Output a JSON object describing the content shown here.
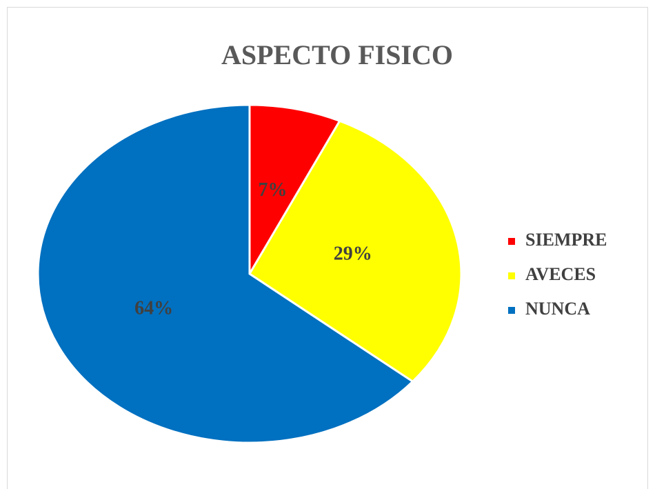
{
  "chart_data": {
    "type": "pie",
    "title": "ASPECTO FISICO",
    "categories": [
      "SIEMPRE",
      "AVECES",
      "NUNCA"
    ],
    "values": [
      7,
      29,
      64
    ],
    "value_labels": [
      "7%",
      "29%",
      "64%"
    ],
    "colors": [
      "#ff0000",
      "#ffff00",
      "#0070c0"
    ],
    "legend": "right"
  }
}
